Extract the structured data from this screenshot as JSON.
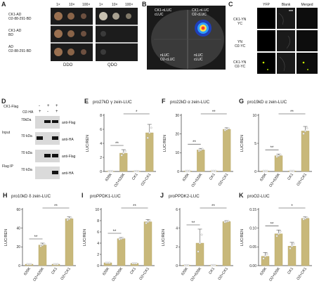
{
  "colors": {
    "bar": "#c8b87a",
    "bar_edge": "#b5a463",
    "dot": "#f2f2f2",
    "plate": "#1c1c1c",
    "leaf": "#3a3a3a",
    "colony": "#9a7050"
  },
  "panel_a": {
    "letter": "A",
    "dilutions": [
      "1×",
      "10×",
      "100×"
    ],
    "rows": [
      {
        "label_line1": "CK1-AD",
        "label_line2": "O2-88-291-BD"
      },
      {
        "label_line1": "CK1-AD",
        "label_line2": "BD"
      },
      {
        "label_line1": "AD",
        "label_line2": "O2-88-291-BD"
      }
    ],
    "media": [
      "DDO",
      "QDO"
    ]
  },
  "panel_b": {
    "letter": "B",
    "labels": {
      "q1": "CK1-nLUC\ncLUC",
      "q2": "CK1-nLUC\nO2-cLUC",
      "q3": "nLUC\nO2-cLUC",
      "q4": "nLUC\ncLUC"
    }
  },
  "panel_c": {
    "letter": "C",
    "columns": [
      "YFP",
      "Blank",
      "Merged"
    ],
    "rows": [
      {
        "line1": "CK1-YN",
        "line2": "YC"
      },
      {
        "line1": "YN",
        "line2": "O2-YC"
      },
      {
        "line1": "CK1-YN",
        "line2": "O2-YC"
      }
    ]
  },
  "panel_d": {
    "letter": "D",
    "conditions": [
      {
        "name": "CK1-Flag",
        "signs": [
          "-",
          "+",
          "+"
        ]
      },
      {
        "name": "O2-HA",
        "signs": [
          "+",
          "-",
          "+"
        ]
      }
    ],
    "sections": [
      "Input",
      "Flag IP"
    ],
    "markers": [
      "70kDa",
      "70 kDa",
      "70 kDa",
      "70 kDa"
    ],
    "antibodies": [
      "anti-Flag",
      "anti-HA",
      "anti-Flag",
      "anti-HA"
    ]
  },
  "chart_data": [
    {
      "panel": "E",
      "type": "bar",
      "title": "pro27kD γ zein-LUC",
      "ylabel": "LUC/REN",
      "ylim": [
        0,
        8
      ],
      "yticks": [
        0,
        2,
        4,
        6,
        8
      ],
      "categories": [
        "628K",
        "O2+628K",
        "CK1",
        "O2+CK1"
      ],
      "values": [
        0.05,
        2.6,
        0.05,
        5.5
      ],
      "errors": [
        0,
        0.5,
        0,
        1.2
      ],
      "sig": [
        {
          "from": 0,
          "to": 1,
          "label": "**"
        },
        {
          "from": 1,
          "to": 3,
          "label": "*"
        }
      ]
    },
    {
      "panel": "F",
      "type": "bar",
      "title": "pro22kD α zein-LUC",
      "ylabel": "LUC/REN",
      "ylim": [
        0,
        30
      ],
      "yticks": [
        0,
        10,
        20,
        30
      ],
      "categories": [
        "628K",
        "O2+628K",
        "CK1",
        "O2+CK1"
      ],
      "values": [
        0.3,
        11.5,
        0.3,
        22.5
      ],
      "errors": [
        0,
        0.8,
        0,
        0.8
      ],
      "sig": [
        {
          "from": 0,
          "to": 1,
          "label": "**"
        },
        {
          "from": 1,
          "to": 3,
          "label": "**"
        }
      ]
    },
    {
      "panel": "G",
      "type": "bar",
      "title": "pro19kD α zein-LUC",
      "ylabel": "LUC/REN",
      "ylim": [
        0,
        10
      ],
      "yticks": [
        0,
        5,
        10
      ],
      "categories": [
        "628K",
        "O2+628K",
        "CK1",
        "O2+CK1"
      ],
      "values": [
        0.1,
        2.8,
        0.1,
        7.2
      ],
      "errors": [
        0,
        0.3,
        0,
        0.8
      ],
      "sig": [
        {
          "from": 0,
          "to": 1,
          "label": "**"
        },
        {
          "from": 1,
          "to": 3,
          "label": "**"
        }
      ]
    },
    {
      "panel": "H",
      "type": "bar",
      "title": "pro10kD δ zein-LUC",
      "ylabel": "LUC/REN",
      "ylim": [
        0,
        60
      ],
      "yticks": [
        0,
        20,
        40,
        60
      ],
      "categories": [
        "628K",
        "O2+628K",
        "CK1",
        "O2+CK1"
      ],
      "values": [
        1.5,
        22,
        1.5,
        50
      ],
      "errors": [
        0,
        2,
        0,
        2
      ],
      "sig": [
        {
          "from": 0,
          "to": 1,
          "label": "**"
        },
        {
          "from": 1,
          "to": 3,
          "label": "**"
        }
      ]
    },
    {
      "panel": "I",
      "type": "bar",
      "title": "proPPDK1-LUC",
      "ylabel": "LUC/REN",
      "ylim": [
        0,
        10
      ],
      "yticks": [
        0,
        2,
        4,
        6,
        8,
        10
      ],
      "categories": [
        "628K",
        "O2+628K",
        "CK1",
        "O2+CK1"
      ],
      "values": [
        0.5,
        4.8,
        0.4,
        7.8
      ],
      "errors": [
        0,
        0.2,
        0,
        0.4
      ],
      "sig": [
        {
          "from": 0,
          "to": 1,
          "label": "**"
        },
        {
          "from": 1,
          "to": 3,
          "label": "**"
        }
      ]
    },
    {
      "panel": "J",
      "type": "bar",
      "title": "proPPDK2-LUC",
      "ylabel": "LUC/REN",
      "ylim": [
        0,
        6
      ],
      "yticks": [
        0,
        2,
        4,
        6
      ],
      "categories": [
        "628K",
        "O2+628K",
        "CK1",
        "O2+CK1"
      ],
      "values": [
        0.05,
        2.4,
        0.05,
        4.7
      ],
      "errors": [
        0,
        1.5,
        0,
        0.1
      ],
      "sig": [
        {
          "from": 0,
          "to": 1,
          "label": "**"
        },
        {
          "from": 1,
          "to": 3,
          "label": "**"
        }
      ]
    },
    {
      "panel": "K",
      "type": "bar",
      "title": "proO2-LUC",
      "ylabel": "LUC/REN",
      "ylim": [
        0,
        0.15
      ],
      "yticks": [
        0,
        0.05,
        0.1,
        0.15
      ],
      "categories": [
        "628K",
        "O2+628K",
        "CK1",
        "O2+CK1"
      ],
      "values": [
        0.025,
        0.085,
        0.052,
        0.126
      ],
      "errors": [
        0.01,
        0.01,
        0.01,
        0.004
      ],
      "sig": [
        {
          "from": 0,
          "to": 1,
          "label": "**"
        },
        {
          "from": 1,
          "to": 3,
          "label": "*"
        }
      ]
    }
  ]
}
